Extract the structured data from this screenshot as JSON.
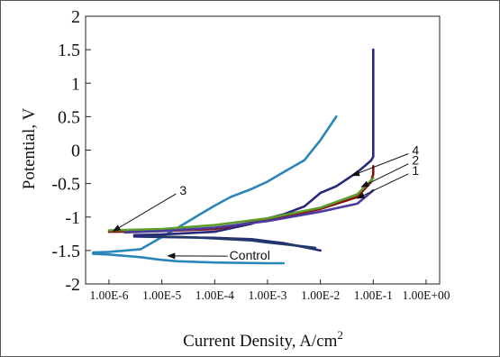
{
  "chart_data": {
    "type": "line",
    "title": "",
    "xlabel": "Current Density, A/cm",
    "xlabel_sup": "2",
    "ylabel": "Potential, V",
    "x_scale": "log",
    "x_ticks": [
      1e-06,
      1e-05,
      0.0001,
      0.001,
      0.01,
      0.1,
      1
    ],
    "x_tick_labels": [
      "1.00E-6",
      "1.00E-5",
      "1.00E-4",
      "1.00E-3",
      "1.00E-2",
      "1.00E-1",
      "1.00E+00"
    ],
    "xlim": [
      1e-06,
      1
    ],
    "ylim": [
      -2,
      2
    ],
    "y_ticks": [
      2,
      1.5,
      1,
      0.5,
      0,
      -0.5,
      -1,
      -1.5,
      -2
    ],
    "y_tick_labels": [
      "2",
      "1.5",
      "1",
      "0.5",
      "0",
      "-0.5",
      "-1",
      "-1.5",
      "-2"
    ],
    "grid": false,
    "legend": "none",
    "series": [
      {
        "label": "Control",
        "color": "#2a86b8",
        "x": [
          5e-07,
          1e-06,
          4e-06,
          1e-05,
          2e-05,
          5e-05,
          0.0001,
          0.0002,
          0.0005,
          0.001,
          0.002,
          0.005,
          0.01,
          0.02
        ],
        "y": [
          -1.53,
          -1.52,
          -1.48,
          -1.3,
          -1.16,
          -0.97,
          -0.83,
          -0.7,
          -0.58,
          -0.47,
          -0.33,
          -0.15,
          0.15,
          0.5
        ]
      },
      {
        "label": "Control",
        "color": "#2a86b8",
        "x": [
          5e-07,
          1e-06,
          4e-06,
          1e-05,
          2e-05,
          0.0001,
          0.001,
          0.002
        ],
        "y": [
          -1.55,
          -1.56,
          -1.6,
          -1.64,
          -1.66,
          -1.68,
          -1.69,
          -1.69
        ]
      },
      {
        "label": "3",
        "color": "#2a2a7a",
        "x": [
          3e-06,
          1e-05,
          0.0001,
          0.0005,
          0.001,
          0.002,
          0.005,
          0.01,
          0.02,
          0.05,
          0.09,
          0.1,
          0.1,
          0.1
        ],
        "y": [
          -1.27,
          -1.26,
          -1.22,
          -1.1,
          -1.02,
          -0.96,
          -0.84,
          -0.64,
          -0.54,
          -0.33,
          -0.16,
          -0.1,
          0.6,
          1.5
        ]
      },
      {
        "label": "3",
        "color": "#2a2a7a",
        "x": [
          3e-06,
          1e-05,
          0.0001,
          0.0005,
          0.001,
          0.002,
          0.005,
          0.01
        ],
        "y": [
          -1.29,
          -1.3,
          -1.31,
          -1.33,
          -1.36,
          -1.39,
          -1.45,
          -1.5
        ]
      },
      {
        "label": "4",
        "color": "#8a1010",
        "x": [
          1e-06,
          1e-05,
          0.0001,
          0.001,
          0.01,
          0.05,
          0.09,
          0.1,
          0.1
        ],
        "y": [
          -1.22,
          -1.21,
          -1.18,
          -1.04,
          -0.88,
          -0.7,
          -0.48,
          -0.36,
          -0.24
        ]
      },
      {
        "label": "2",
        "color": "#5f9c2e",
        "x": [
          1e-06,
          1e-05,
          0.0001,
          0.001,
          0.01,
          0.05,
          0.1
        ],
        "y": [
          -1.2,
          -1.18,
          -1.12,
          -1.02,
          -0.86,
          -0.66,
          -0.42
        ]
      },
      {
        "label": "1",
        "color": "#4b3aa0",
        "x": [
          2e-06,
          1e-05,
          0.0001,
          0.001,
          0.01,
          0.05,
          0.1
        ],
        "y": [
          -1.23,
          -1.21,
          -1.16,
          -1.06,
          -0.92,
          -0.8,
          -0.6
        ]
      },
      {
        "label": "1",
        "color": "#223a6a",
        "x": [
          5e-06,
          3e-05,
          0.0001,
          0.0005,
          0.001,
          0.003,
          0.008
        ],
        "y": [
          -1.29,
          -1.3,
          -1.32,
          -1.35,
          -1.38,
          -1.42,
          -1.46
        ]
      }
    ],
    "annotations": [
      {
        "text": "3",
        "x_text": 2e-05,
        "y_text": -0.6,
        "x_arrow": 1.2e-06,
        "y_arrow": -1.21
      },
      {
        "text": "Control",
        "x_text": 0.00019,
        "y_text": -1.57,
        "x_arrow": 1.3e-05,
        "y_arrow": -1.58
      },
      {
        "text": "4",
        "x_text": 0.5,
        "y_text": 0.0,
        "x_arrow": 0.04,
        "y_arrow": -0.38
      },
      {
        "text": "2",
        "x_text": 0.5,
        "y_text": -0.15,
        "x_arrow": 0.06,
        "y_arrow": -0.55
      },
      {
        "text": "1",
        "x_text": 0.5,
        "y_text": -0.3,
        "x_arrow": 0.05,
        "y_arrow": -0.72
      }
    ]
  }
}
